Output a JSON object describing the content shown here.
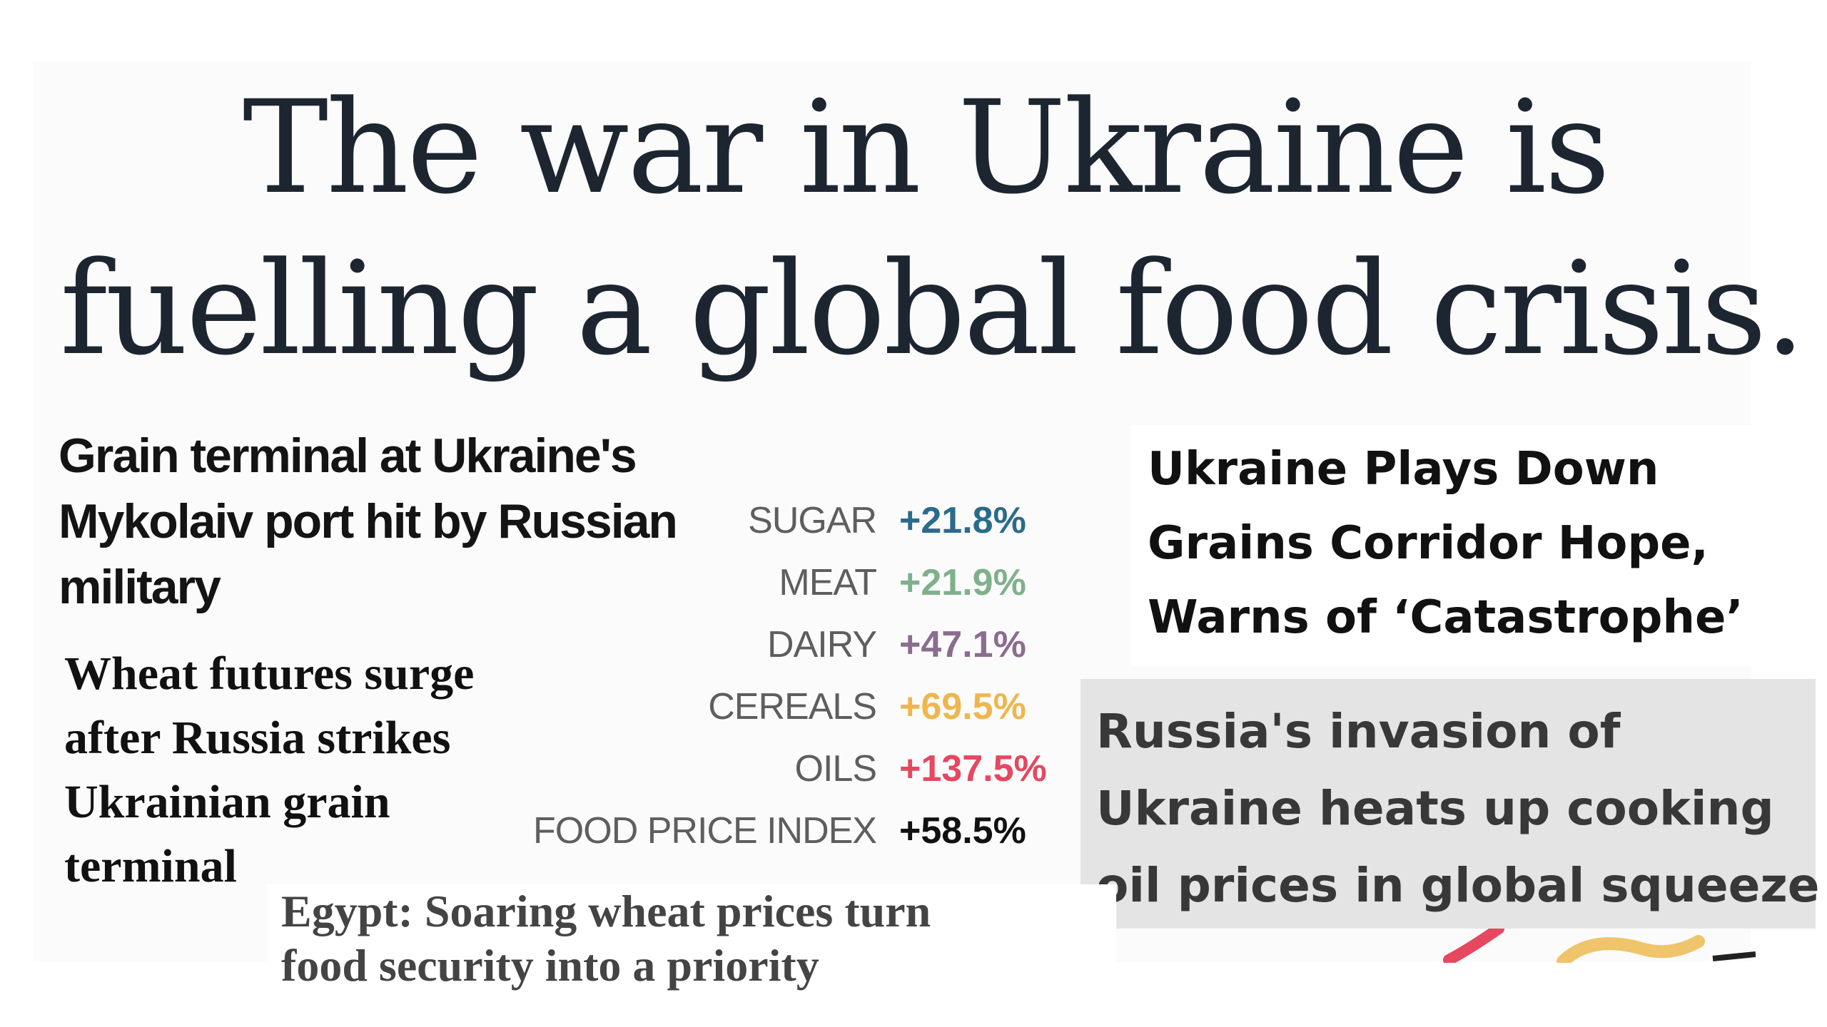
{
  "main_title": {
    "line1": "The war in Ukraine is",
    "line2": "fuelling a global food crisis."
  },
  "headlines": {
    "grain_terminal": "Grain terminal at Ukraine's Mykolaiv port hit by Russian military",
    "wheat_futures": "Wheat futures surge after Russia strikes Ukrainian grain terminal",
    "egypt": {
      "line1": "Egypt: Soaring wheat prices turn",
      "line2": "food security into a priority"
    },
    "ukraine_plays_down": {
      "line1": "Ukraine Plays Down",
      "line2": "Grains Corridor Hope,",
      "line3": "Warns of ‘Catastrophe’"
    },
    "russia_invasion": {
      "line1": "Russia's invasion of",
      "line2": "Ukraine heats up cooking",
      "line3": "oil prices in global squeeze"
    }
  },
  "price_changes": [
    {
      "category": "SUGAR",
      "change": "+21.8%",
      "color": "#2a6b8c"
    },
    {
      "category": "MEAT",
      "change": "+21.9%",
      "color": "#7fb08c"
    },
    {
      "category": "DAIRY",
      "change": "+47.1%",
      "color": "#8b6d8f"
    },
    {
      "category": "CEREALS",
      "change": "+69.5%",
      "color": "#efb64e"
    },
    {
      "category": "OILS",
      "change": "+137.5%",
      "color": "#e5485f"
    },
    {
      "category": "FOOD PRICE INDEX",
      "change": "+58.5%",
      "color": "#111111"
    }
  ],
  "colors": {
    "title_text": "#1d2630",
    "panel_bg": "#fbfbfb",
    "russia_box_bg": "#e4e4e4"
  }
}
